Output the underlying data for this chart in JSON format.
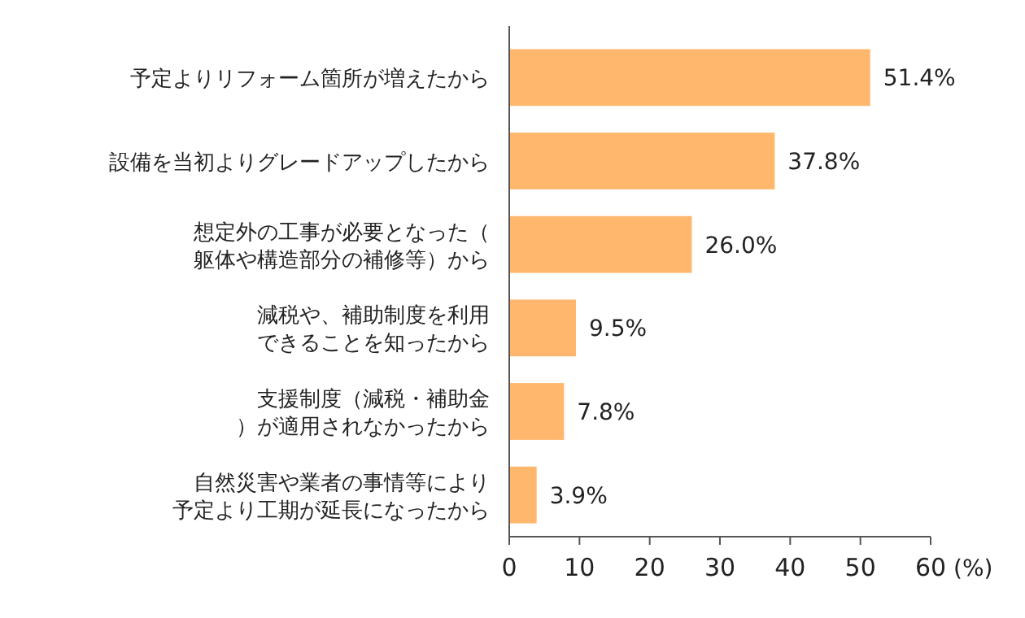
{
  "chart_data": {
    "type": "bar",
    "orientation": "horizontal",
    "categories": [
      "予定よりリフォーム箇所が増えたから",
      "設備を当初よりグレードアップしたから",
      "想定外の工事が必要となった（躯体や構造部分の補修等）から",
      "減税や、補助制度を利用できることを知ったから",
      "支援制度（減税・補助金）が適用されなかったから",
      "自然災害や業者の事情等により予定より工期が延長になったから"
    ],
    "values": [
      51.4,
      37.8,
      26.0,
      9.5,
      7.8,
      3.9
    ],
    "value_labels": [
      "51.4%",
      "37.8%",
      "26.0%",
      "9.5%",
      "7.8%",
      "3.9%"
    ],
    "color": "#ffb76e",
    "xlim": [
      0,
      60
    ],
    "xticks": [
      0,
      10,
      20,
      30,
      40,
      50,
      60
    ],
    "xlabel": "(%)",
    "grid": false
  }
}
